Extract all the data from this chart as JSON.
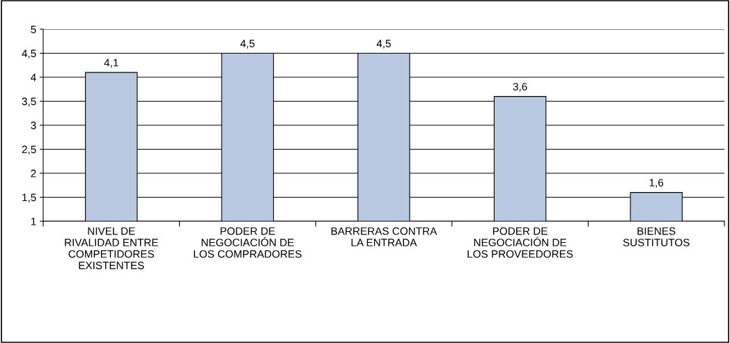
{
  "chart_data": {
    "type": "bar",
    "categories": [
      "NIVEL DE RIVALIDAD ENTRE COMPETIDORES EXISTENTES",
      "PODER DE NEGOCIACIÓN DE LOS COMPRADORES",
      "BARRERAS CONTRA LA ENTRADA",
      "PODER DE NEGOCIACIÓN DE LOS PROVEEDORES",
      "BIENES SUSTITUTOS"
    ],
    "values": [
      4.1,
      4.5,
      4.5,
      3.6,
      1.6
    ],
    "value_labels": [
      "4,1",
      "4,5",
      "4,5",
      "3,6",
      "1,6"
    ],
    "color": "#b8c8e0",
    "ylim": [
      1,
      5
    ],
    "yticks": [
      1,
      {
        "value": 1.5,
        "label": "1,5"
      },
      2,
      {
        "value": 2.5,
        "label": "2,5"
      },
      3,
      {
        "value": 3.5,
        "label": "3,5"
      },
      4,
      {
        "value": 4.5,
        "label": "4,5"
      },
      5
    ],
    "grid": "y"
  }
}
